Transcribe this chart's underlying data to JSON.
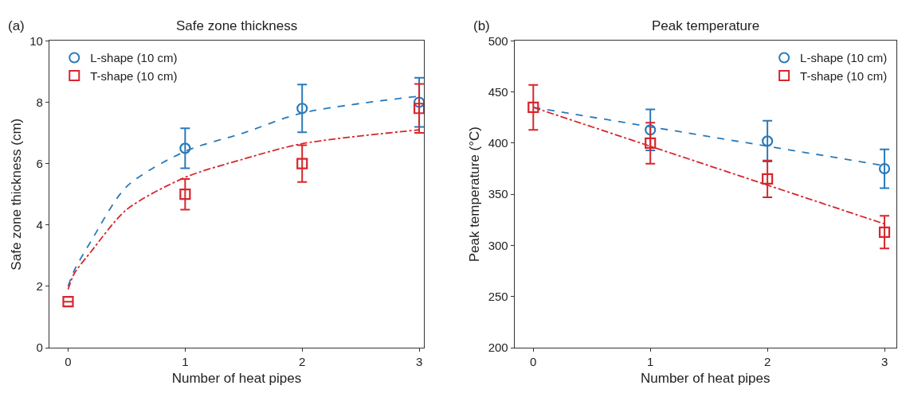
{
  "chart_data": [
    {
      "type": "scatter",
      "title": "Safe zone thickness",
      "annotations": [
        "(a)"
      ],
      "xlabel": "Number of heat pipes",
      "ylabel": "Safe zone thickness (cm)",
      "x": [
        0,
        1,
        2,
        3
      ],
      "series": [
        {
          "name": "L-shape (10 cm)",
          "color": "#2a7ab9",
          "type": "scatter",
          "marker": "circle",
          "values": [
            null,
            6.5,
            7.8,
            8.0
          ],
          "errors": [
            null,
            0.65,
            0.78,
            0.8
          ]
        },
        {
          "name": "T-shape (10 cm)",
          "color": "#d7262b",
          "type": "scatter",
          "marker": "square",
          "values": [
            1.5,
            5.0,
            6.0,
            7.8
          ],
          "errors": [
            null,
            0.5,
            0.6,
            0.8
          ]
        },
        {
          "type": "line",
          "color": "#2a7ab9",
          "line_style": "dashed",
          "marker": "none",
          "x": [
            0,
            0.05,
            0.2,
            0.5,
            1,
            1.5,
            2,
            3
          ],
          "values": [
            2.0,
            2.5,
            3.5,
            5.25,
            6.4,
            7.0,
            7.65,
            8.2
          ]
        },
        {
          "type": "line",
          "color": "#d7262b",
          "line_style": "dashdot",
          "marker": "none",
          "x": [
            0,
            0.05,
            0.2,
            0.5,
            1,
            1.5,
            2,
            3
          ],
          "values": [
            1.9,
            2.4,
            3.15,
            4.5,
            5.55,
            6.15,
            6.65,
            7.1
          ]
        }
      ],
      "xlim": [
        -0.16,
        3.04
      ],
      "ylim": [
        0,
        10
      ],
      "xticks": [
        0,
        1,
        2,
        3
      ],
      "yticks": [
        0,
        2,
        4,
        6,
        8,
        10
      ],
      "legend": "top left"
    },
    {
      "type": "scatter",
      "title": "Peak temperature",
      "annotations": [
        "(b)"
      ],
      "xlabel": "Number of heat pipes",
      "ylabel": "Peak temperature (°C)",
      "x": [
        0,
        1,
        2,
        3
      ],
      "series": [
        {
          "name": "L-shape (10 cm)",
          "color": "#2a7ab9",
          "type": "scatter",
          "marker": "circle",
          "values": [
            null,
            413,
            402,
            375
          ],
          "errors": [
            null,
            20,
            20,
            19
          ]
        },
        {
          "name": "T-shape (10 cm)",
          "color": "#d7262b",
          "type": "scatter",
          "marker": "square",
          "values": [
            435,
            400,
            365,
            313
          ],
          "errors": [
            22,
            20,
            18,
            16
          ]
        },
        {
          "type": "line",
          "color": "#2a7ab9",
          "line_style": "dashed",
          "marker": "none",
          "x": [
            0,
            3
          ],
          "values": [
            435,
            378
          ]
        },
        {
          "type": "line",
          "color": "#d7262b",
          "line_style": "dashdot",
          "marker": "none",
          "x": [
            0,
            3
          ],
          "values": [
            435,
            321
          ]
        }
      ],
      "xlim": [
        -0.16,
        3.1
      ],
      "ylim": [
        200,
        500
      ],
      "xticks": [
        0,
        1,
        2,
        3
      ],
      "yticks": [
        200,
        250,
        300,
        350,
        400,
        450,
        500
      ],
      "legend": "top right"
    }
  ]
}
